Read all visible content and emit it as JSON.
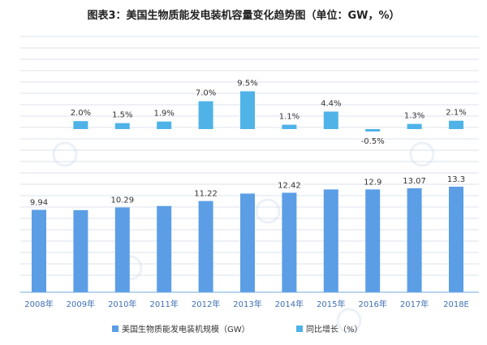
{
  "chart_data": {
    "type": "bar",
    "title": "图表3：美国生物质能发电装机容量变化趋势图（单位：GW，%）",
    "categories": [
      "2008年",
      "2009年",
      "2010年",
      "2011年",
      "2012年",
      "2013年",
      "2014年",
      "2015年",
      "2016年",
      "2017年",
      "2018E"
    ],
    "series": [
      {
        "name": "美国生物质能发电装机规模（GW）",
        "values": [
          9.94,
          9.9,
          10.29,
          10.5,
          11.22,
          12.3,
          12.42,
          12.9,
          12.9,
          13.07,
          13.3
        ],
        "labels": [
          "9.94",
          "",
          "10.29",
          "",
          "11.22",
          "",
          "12.42",
          "",
          "12.9",
          "13.07",
          "13.3"
        ]
      },
      {
        "name": "同比增长（%）",
        "values": [
          null,
          2.0,
          1.5,
          1.9,
          7.0,
          9.5,
          1.1,
          4.4,
          -0.5,
          1.3,
          2.1
        ],
        "labels": [
          "",
          "2.0%",
          "1.5%",
          "1.9%",
          "7.0%",
          "9.5%",
          "1.1%",
          "4.4%",
          "-0.5%",
          "1.3%",
          "2.1%"
        ]
      }
    ],
    "legend_position": "bottom",
    "grid": true,
    "colors": {
      "capacity": "#5b9ee6",
      "growth": "#4fb3e8",
      "grid": "#dbe3ec",
      "tick": "#3e6fb3"
    }
  }
}
